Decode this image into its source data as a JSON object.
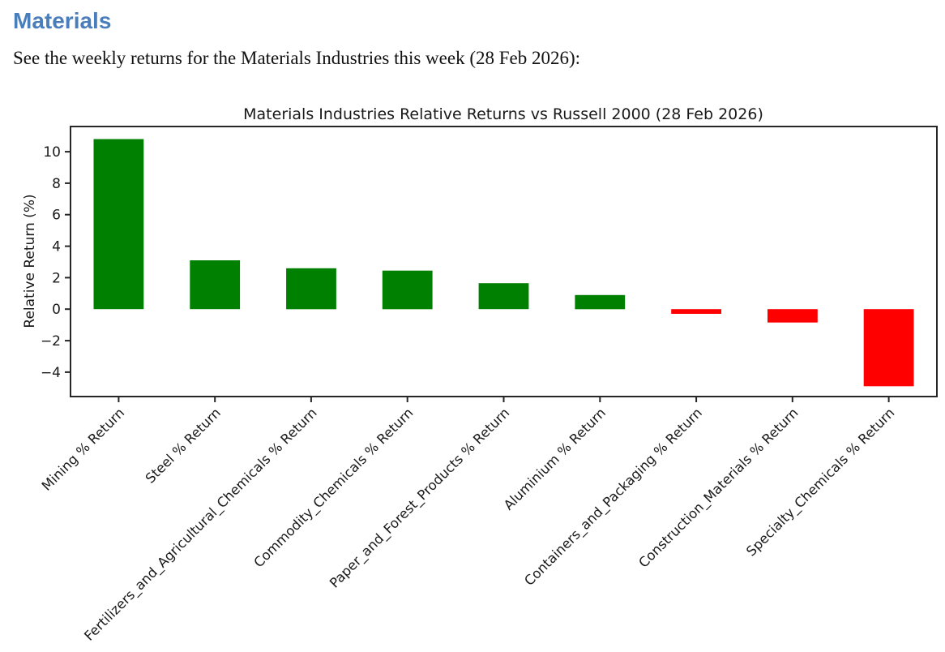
{
  "page": {
    "heading": "Materials",
    "heading_color": "#4a7ebb",
    "subtitle": "See the weekly returns for the Materials Industries this week (28 Feb 2026):"
  },
  "chart_data": {
    "type": "bar",
    "title": "Materials Industries Relative Returns vs Russell 2000 (28 Feb 2026)",
    "xlabel": "",
    "ylabel": "Relative Return (%)",
    "categories": [
      "Mining % Return",
      "Steel % Return",
      "Fertilizers_and_Agricultural_Chemicals % Return",
      "Commodity_Chemicals % Return",
      "Paper_and_Forest_Products % Return",
      "Aluminium % Return",
      "Containers_and_Packaging % Return",
      "Construction_Materials % Return",
      "Specialty_Chemicals % Return"
    ],
    "values": [
      10.8,
      3.1,
      2.6,
      2.45,
      1.65,
      0.9,
      -0.3,
      -0.85,
      -4.9
    ],
    "yticks": [
      10,
      8,
      6,
      4,
      2,
      0,
      -2,
      -4
    ],
    "ylim": [
      -5.55,
      11.6
    ],
    "positive_color": "#008000",
    "negative_color": "#ff0000",
    "spine_color": "#262626",
    "grid": false,
    "legend": "none",
    "bar_width_fraction": 0.52,
    "xlabel_rotation": 45
  }
}
